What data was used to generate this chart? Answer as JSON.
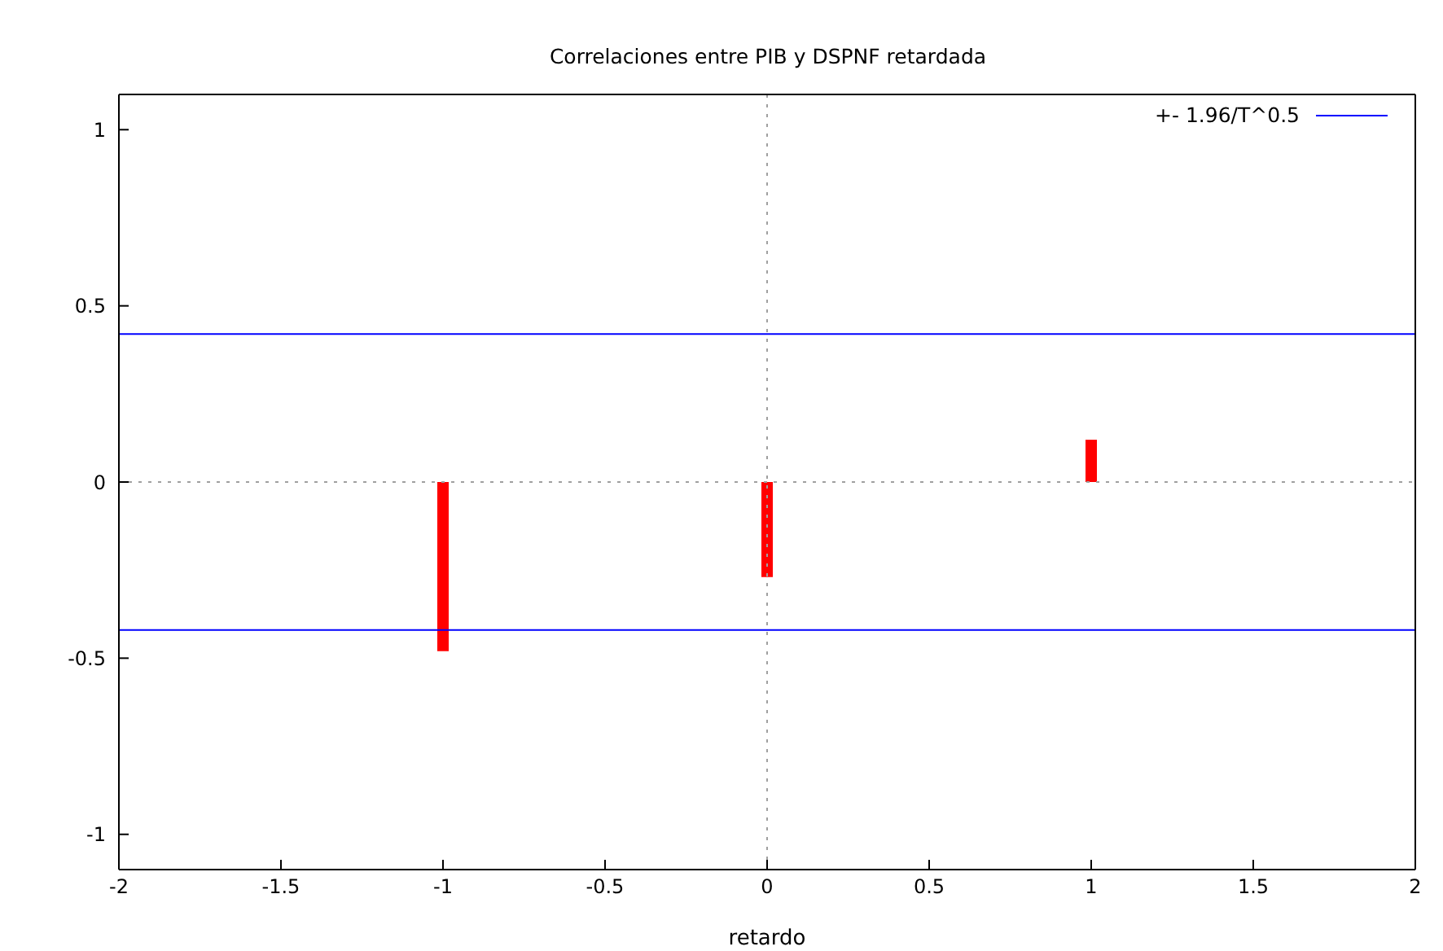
{
  "chart_data": {
    "type": "bar",
    "title": "Correlaciones entre PIB y DSPNF retardada",
    "xlabel": "retardo",
    "x": [
      -1,
      0,
      1
    ],
    "series": [
      {
        "color": "#ff0000",
        "values": [
          -0.48,
          -0.27,
          0.12
        ]
      }
    ],
    "xlim": [
      -2,
      2
    ],
    "xticks": [
      -2,
      -1.5,
      -1,
      -0.5,
      0,
      0.5,
      1,
      1.5,
      2
    ],
    "ylim": [
      -1.1,
      1.1
    ],
    "yticks": [
      -1,
      -0.5,
      0,
      0.5,
      1
    ],
    "ref_lines": [
      {
        "axis": "y",
        "value": 0.42,
        "label": "+- 1.96/T^0.5",
        "color": "#0000ff",
        "line_style": "solid"
      },
      {
        "axis": "y",
        "value": -0.42,
        "color": "#0000ff",
        "line_style": "solid"
      },
      {
        "axis": "y",
        "value": 0,
        "color": "#a0a0a0",
        "line_style": "dotted"
      },
      {
        "axis": "x",
        "value": 0,
        "color": "#a0a0a0",
        "line_style": "dotted"
      }
    ],
    "grid": false,
    "legend": "top right"
  }
}
